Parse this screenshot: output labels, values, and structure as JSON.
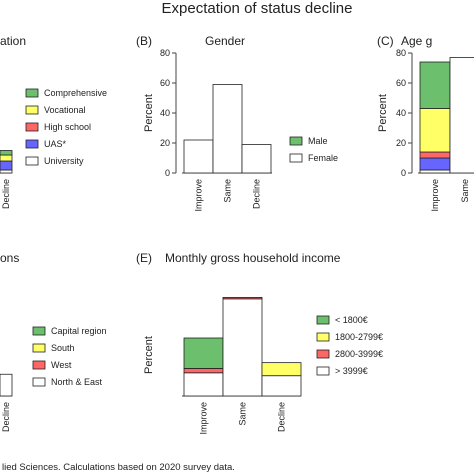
{
  "title": "Expectation of status decline",
  "colors": {
    "green": "#6cbf6c",
    "yellow": "#ffff66",
    "red": "#ff6666",
    "blue": "#6666ff",
    "white": "#ffffff"
  },
  "chart_data": [
    {
      "id": "A",
      "type": "bar",
      "stacked": true,
      "label": "",
      "title": "ation",
      "categories": [
        "Decline"
      ],
      "ylim": [
        0,
        80
      ],
      "ylabel": "",
      "legend": [
        {
          "name": "Comprehensive",
          "color": "green"
        },
        {
          "name": "Vocational",
          "color": "yellow"
        },
        {
          "name": "High school",
          "color": "red"
        },
        {
          "name": "UAS*",
          "color": "blue"
        },
        {
          "name": "University",
          "color": "white"
        }
      ],
      "bars": [
        {
          "category": "Decline",
          "segments": [
            {
              "series": "University",
              "value": 2,
              "color": "white"
            },
            {
              "series": "UAS*",
              "value": 6,
              "color": "blue"
            },
            {
              "series": "Vocational",
              "value": 4,
              "color": "yellow"
            },
            {
              "series": "Comprehensive",
              "value": 3,
              "color": "green"
            }
          ]
        }
      ]
    },
    {
      "id": "B",
      "type": "bar",
      "stacked": true,
      "label": "(B)",
      "title": "Gender",
      "categories": [
        "Improve",
        "Same",
        "Decline"
      ],
      "yticks": [
        0,
        20,
        40,
        60,
        80
      ],
      "ylim": [
        0,
        80
      ],
      "ylabel": "Percent",
      "legend": [
        {
          "name": "Male",
          "color": "green"
        },
        {
          "name": "Female",
          "color": "white"
        }
      ],
      "bars": [
        {
          "category": "Improve",
          "segments": [
            {
              "series": "Female",
              "value": 22,
              "color": "white"
            }
          ]
        },
        {
          "category": "Same",
          "segments": [
            {
              "series": "Female",
              "value": 59,
              "color": "white"
            }
          ]
        },
        {
          "category": "Decline",
          "segments": [
            {
              "series": "Female",
              "value": 19,
              "color": "white"
            }
          ]
        }
      ]
    },
    {
      "id": "C",
      "type": "bar",
      "stacked": true,
      "label": "(C)",
      "title": "Age g",
      "categories": [
        "Improve",
        "Same"
      ],
      "yticks": [
        0,
        20,
        40,
        60,
        80
      ],
      "ylim": [
        0,
        80
      ],
      "ylabel": "Percent",
      "legend": [],
      "bars": [
        {
          "category": "Improve",
          "segments": [
            {
              "series": "",
              "value": 2,
              "color": "white"
            },
            {
              "series": "",
              "value": 8,
              "color": "blue"
            },
            {
              "series": "",
              "value": 4,
              "color": "red"
            },
            {
              "series": "",
              "value": 29,
              "color": "yellow"
            },
            {
              "series": "",
              "value": 31,
              "color": "green"
            }
          ]
        },
        {
          "category": "Same",
          "segments": [
            {
              "series": "",
              "value": 77,
              "color": "white"
            }
          ]
        }
      ]
    },
    {
      "id": "D",
      "type": "bar",
      "stacked": true,
      "label": "",
      "title": "ons",
      "categories": [
        "Decline"
      ],
      "ylim": [
        0,
        80
      ],
      "ylabel": "",
      "legend": [
        {
          "name": "Capital region",
          "color": "green"
        },
        {
          "name": "South",
          "color": "yellow"
        },
        {
          "name": "West",
          "color": "red"
        },
        {
          "name": "North & East",
          "color": "white"
        }
      ],
      "bars": [
        {
          "category": "Decline",
          "segments": [
            {
              "series": "North & East",
              "value": 15,
              "color": "white"
            }
          ]
        }
      ]
    },
    {
      "id": "E",
      "type": "bar",
      "stacked": true,
      "label": "(E)",
      "title": "Monthly gross household income",
      "categories": [
        "Improve",
        "Same",
        "Decline"
      ],
      "ylim": [
        0,
        80
      ],
      "ylabel": "Percent",
      "legend": [
        {
          "name": "< 1800€",
          "color": "green"
        },
        {
          "name": "1800-2799€",
          "color": "yellow"
        },
        {
          "name": "2800-3999€",
          "color": "red"
        },
        {
          "name": "> 3999€",
          "color": "white"
        }
      ],
      "bars": [
        {
          "category": "Improve",
          "segments": [
            {
              "series": "> 3999€",
              "value": 16,
              "color": "white"
            },
            {
              "series": "2800-3999€",
              "value": 3,
              "color": "red"
            },
            {
              "series": "< 1800€",
              "value": 21,
              "color": "green"
            }
          ]
        },
        {
          "category": "Same",
          "segments": [
            {
              "series": "> 3999€",
              "value": 67,
              "color": "white"
            },
            {
              "series": "2800-3999€",
              "value": 1,
              "color": "red"
            }
          ]
        },
        {
          "category": "Decline",
          "segments": [
            {
              "series": "> 3999€",
              "value": 14,
              "color": "white"
            },
            {
              "series": "1800-2799€",
              "value": 9,
              "color": "yellow"
            }
          ]
        }
      ]
    }
  ],
  "footnote": "lied Sciences. Calculations based on 2020 survey data."
}
